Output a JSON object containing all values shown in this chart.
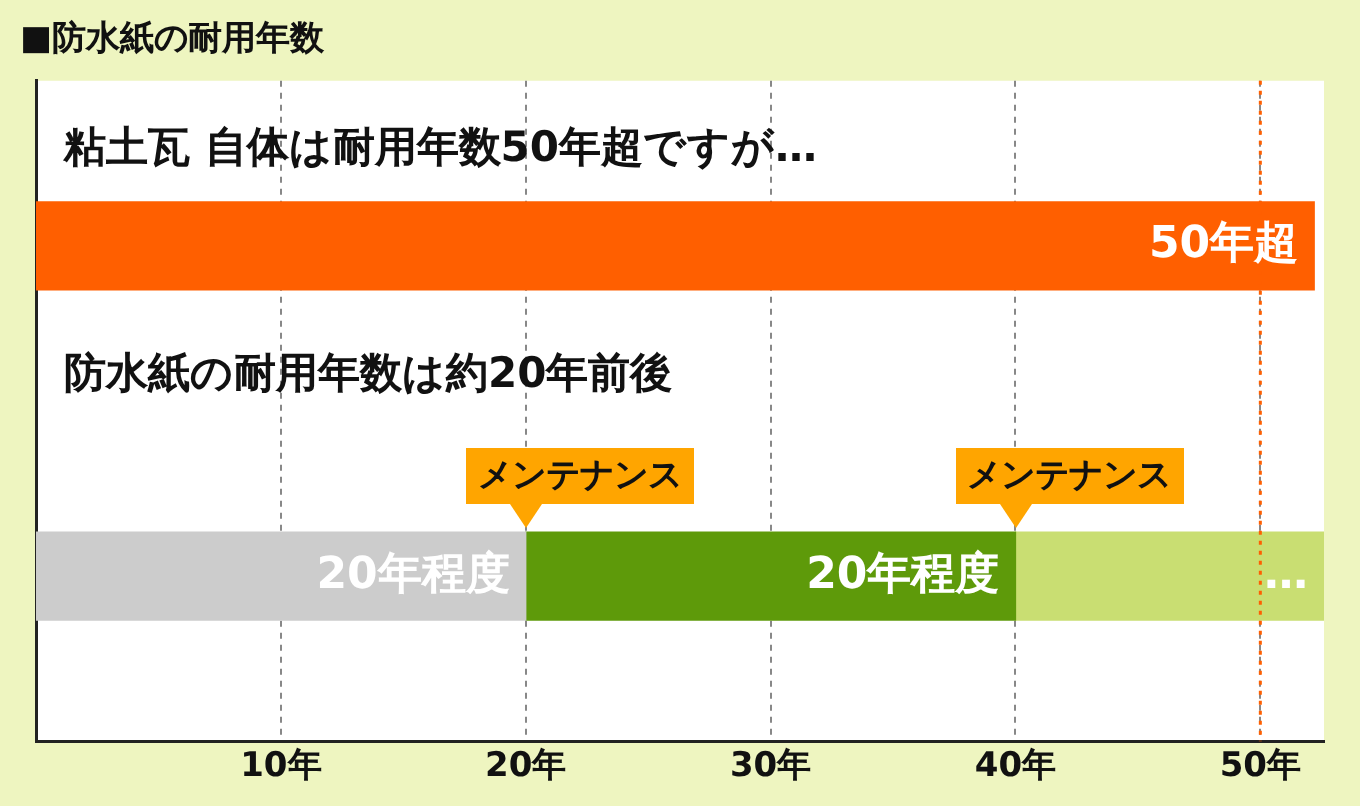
{
  "chart_data": {
    "type": "bar",
    "orientation": "horizontal",
    "stacked": true,
    "title": "■防水紙の耐用年数",
    "categories": [
      null,
      null
    ],
    "series": [
      {
        "color": "#ff5f00",
        "values": [
          52.2,
          null
        ]
      },
      {
        "color": "#cccccc",
        "values": [
          null,
          20
        ],
        "value_labels": [
          null,
          "20年程度"
        ]
      },
      {
        "color": "#5e9a0a",
        "values": [
          null,
          20
        ],
        "value_labels": [
          null,
          "20年程度"
        ]
      },
      {
        "color": "#c9de72",
        "values": [
          null,
          12.6
        ],
        "value_labels": [
          null,
          "…"
        ]
      }
    ],
    "xlim": [
      0,
      52.6
    ],
    "xticks": [
      {
        "value": 10,
        "label": "10年"
      },
      {
        "value": 20,
        "label": "20年"
      },
      {
        "value": 30,
        "label": "30年"
      },
      {
        "value": 40,
        "label": "40年"
      },
      {
        "value": 50,
        "label": "50年"
      }
    ],
    "grid": "x",
    "ref_lines": [
      {
        "axis": "x",
        "value": 50,
        "color": "#ff5f00",
        "line_style": "dotted"
      }
    ],
    "annotations": [
      "粘土瓦 自体は耐用年数50年超ですが…",
      "防水紙の耐用年数は約20年前後",
      "50年超",
      "メンテナンス",
      "メンテナンス"
    ],
    "legend": false
  }
}
